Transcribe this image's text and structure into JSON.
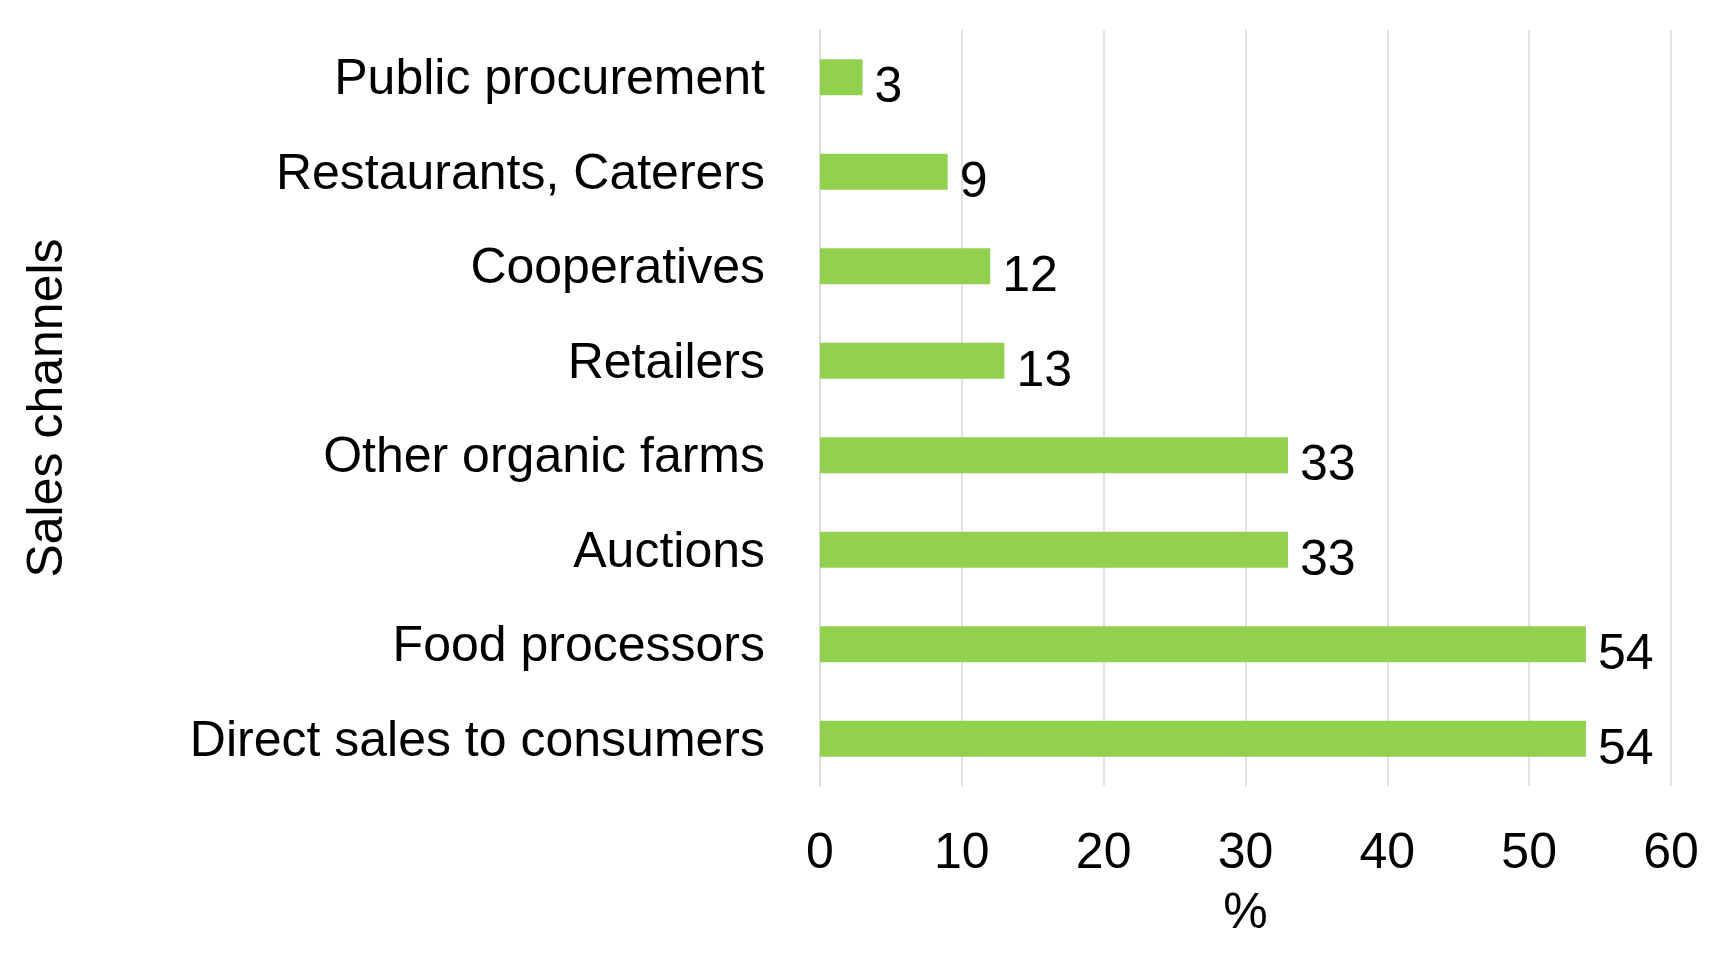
{
  "chart_data": {
    "type": "bar",
    "orientation": "horizontal",
    "xlabel": "%",
    "ylabel": "Sales channels",
    "categories": [
      "Public procurement",
      "Restaurants, Caterers",
      "Cooperatives",
      "Retailers",
      "Other organic farms",
      "Auctions",
      "Food processors",
      "Direct sales to consumers"
    ],
    "values": [
      3,
      9,
      12,
      13,
      33,
      33,
      54,
      54
    ],
    "color": "#92d050",
    "xlim": [
      0,
      60
    ],
    "xticks": [
      0,
      10,
      20,
      30,
      40,
      50,
      60
    ],
    "grid": "x",
    "data_labels": true
  }
}
